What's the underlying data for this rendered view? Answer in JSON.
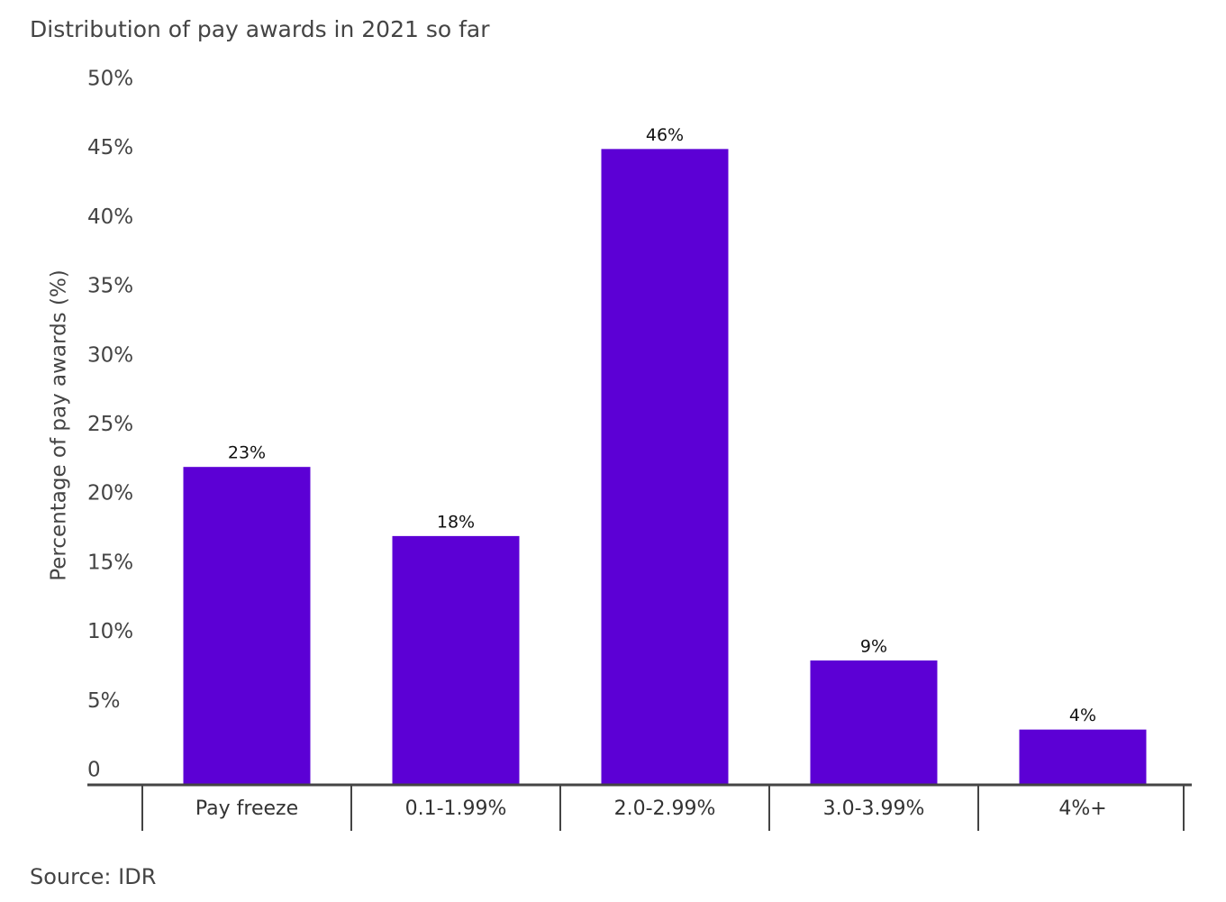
{
  "chart_data": {
    "type": "bar",
    "title": "Distribution of pay awards in 2021 so far",
    "ylabel": "Percentage of pay awards (%)",
    "source": "Source: IDR",
    "categories": [
      "Pay freeze",
      "0.1-1.99%",
      "2.0-2.99%",
      "3.0-3.99%",
      "4%+"
    ],
    "values": [
      23,
      18,
      46,
      9,
      4
    ],
    "value_labels": [
      "23%",
      "18%",
      "46%",
      "9%",
      "4%"
    ],
    "color": "#5c00d5",
    "ylim": [
      0,
      50
    ],
    "yticks": [
      0,
      {
        "value": 5,
        "label": "5%"
      },
      {
        "value": 10,
        "label": "10%"
      },
      {
        "value": 15,
        "label": "15%"
      },
      {
        "value": 20,
        "label": "20%"
      },
      {
        "value": 25,
        "label": "25%"
      },
      {
        "value": 30,
        "label": "30%"
      },
      {
        "value": 35,
        "label": "35%"
      },
      {
        "value": 40,
        "label": "40%"
      },
      {
        "value": 45,
        "label": "45%"
      },
      {
        "value": 50,
        "label": "50%"
      }
    ],
    "grid": false
  }
}
